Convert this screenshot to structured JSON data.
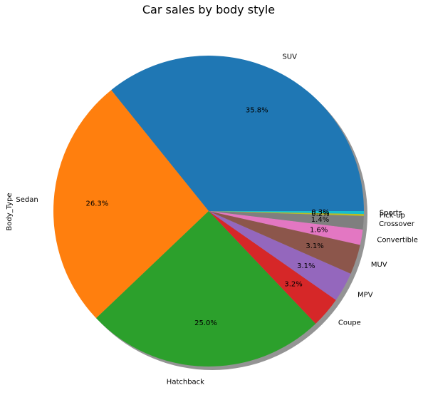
{
  "chart_data": {
    "type": "pie",
    "title": "Car sales by body style",
    "ylabel": "Body_Type",
    "shadow": true,
    "start_angle_deg": 0,
    "direction": "counterclockwise",
    "slices": [
      {
        "label": "SUV",
        "percent": 35.8,
        "pct_text": "35.8%",
        "color": "#1f77b4"
      },
      {
        "label": "Sedan",
        "percent": 26.3,
        "pct_text": "26.3%",
        "color": "#ff7f0e"
      },
      {
        "label": "Hatchback",
        "percent": 25.0,
        "pct_text": "25.0%",
        "color": "#2ca02c"
      },
      {
        "label": "Coupe",
        "percent": 3.2,
        "pct_text": "3.2%",
        "color": "#d62728"
      },
      {
        "label": "MPV",
        "percent": 3.1,
        "pct_text": "3.1%",
        "color": "#9467bd"
      },
      {
        "label": "MUV",
        "percent": 3.1,
        "pct_text": "3.1%",
        "color": "#8c564b"
      },
      {
        "label": "Convertible",
        "percent": 1.6,
        "pct_text": "1.6%",
        "color": "#e377c2"
      },
      {
        "label": "Crossover",
        "percent": 1.4,
        "pct_text": "1.4%",
        "color": "#7f7f7f"
      },
      {
        "label": "Pick-up",
        "percent": 0.2,
        "pct_text": "0.2%",
        "color": "#bcbd22"
      },
      {
        "label": "Sports",
        "percent": 0.3,
        "pct_text": "0.3%",
        "color": "#17becf"
      }
    ]
  }
}
